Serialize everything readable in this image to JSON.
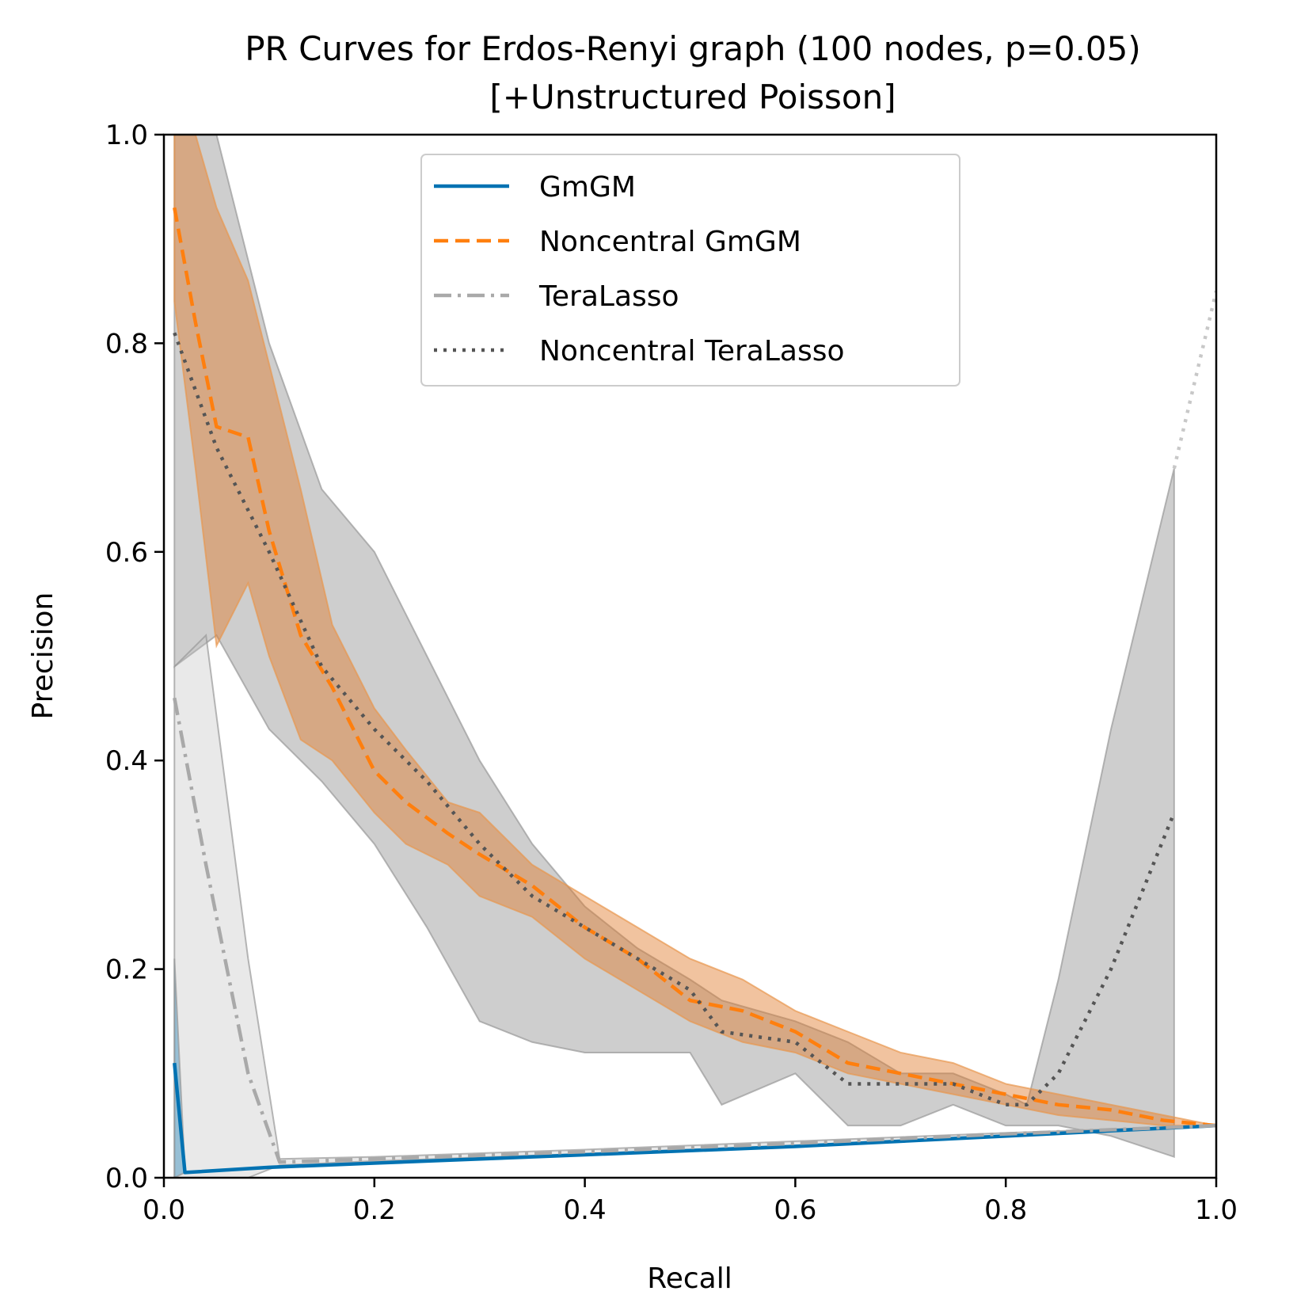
{
  "chart_data": {
    "type": "line",
    "title": "PR Curves for Erdos-Renyi graph (100 nodes, p=0.05)",
    "subtitle": "[+Unstructured Poisson]",
    "xlabel": "Recall",
    "ylabel": "Precision",
    "xlim": [
      0,
      1
    ],
    "ylim": [
      0,
      1
    ],
    "x_ticks": [
      "0.0",
      "0.2",
      "0.4",
      "0.6",
      "0.8",
      "1.0"
    ],
    "y_ticks": [
      "0.0",
      "0.2",
      "0.4",
      "0.6",
      "0.8",
      "1.0"
    ],
    "legend_position": "top-center",
    "series": [
      {
        "name": "GmGM",
        "color": "#0072b2",
        "style": "solid",
        "x": [
          0.01,
          0.02,
          0.1,
          0.2,
          0.4,
          0.6,
          0.8,
          1.0
        ],
        "y": [
          0.11,
          0.005,
          0.01,
          0.014,
          0.022,
          0.03,
          0.04,
          0.05
        ],
        "band_upper": [
          0.21,
          0.005,
          0.01,
          0.014,
          0.022,
          0.03,
          0.04,
          0.05
        ],
        "band_lower": [
          0.0,
          0.005,
          0.01,
          0.014,
          0.022,
          0.03,
          0.04,
          0.05
        ]
      },
      {
        "name": "Noncentral GmGM",
        "color": "#ff7f0e",
        "style": "dashed",
        "x": [
          0.01,
          0.03,
          0.05,
          0.08,
          0.1,
          0.13,
          0.16,
          0.2,
          0.23,
          0.27,
          0.3,
          0.35,
          0.4,
          0.45,
          0.5,
          0.55,
          0.6,
          0.65,
          0.7,
          0.75,
          0.8,
          0.85,
          0.9,
          0.95,
          1.0
        ],
        "y": [
          0.93,
          0.82,
          0.72,
          0.71,
          0.62,
          0.52,
          0.47,
          0.39,
          0.36,
          0.33,
          0.31,
          0.28,
          0.24,
          0.21,
          0.17,
          0.16,
          0.14,
          0.11,
          0.1,
          0.09,
          0.08,
          0.07,
          0.065,
          0.055,
          0.05
        ],
        "band_upper": [
          1.0,
          1.0,
          0.93,
          0.86,
          0.78,
          0.66,
          0.53,
          0.45,
          0.41,
          0.36,
          0.35,
          0.3,
          0.27,
          0.24,
          0.21,
          0.19,
          0.16,
          0.14,
          0.12,
          0.11,
          0.09,
          0.08,
          0.07,
          0.06,
          0.05
        ],
        "band_lower": [
          0.84,
          0.68,
          0.51,
          0.57,
          0.5,
          0.42,
          0.4,
          0.35,
          0.32,
          0.3,
          0.27,
          0.25,
          0.21,
          0.18,
          0.15,
          0.13,
          0.12,
          0.1,
          0.09,
          0.08,
          0.07,
          0.06,
          0.055,
          0.05,
          0.05
        ]
      },
      {
        "name": "TeraLasso",
        "color": "#a9a9a9",
        "style": "dashdot",
        "x": [
          0.01,
          0.04,
          0.08,
          0.11,
          0.2,
          0.4,
          0.6,
          0.8,
          1.0
        ],
        "y": [
          0.46,
          0.3,
          0.1,
          0.015,
          0.018,
          0.025,
          0.033,
          0.042,
          0.05
        ],
        "band_upper": [
          0.49,
          0.52,
          0.21,
          0.018,
          0.02,
          0.027,
          0.035,
          0.043,
          0.05
        ],
        "band_lower": [
          0.0,
          0.0,
          0.0,
          0.012,
          0.016,
          0.023,
          0.031,
          0.041,
          0.05
        ]
      },
      {
        "name": "Noncentral TeraLasso",
        "color": "#555555",
        "style": "dotted",
        "x": [
          0.01,
          0.05,
          0.1,
          0.15,
          0.2,
          0.25,
          0.3,
          0.35,
          0.4,
          0.45,
          0.5,
          0.53,
          0.6,
          0.65,
          0.7,
          0.75,
          0.8,
          0.82,
          0.85,
          0.9,
          0.96
        ],
        "y": [
          0.81,
          0.7,
          0.6,
          0.49,
          0.43,
          0.38,
          0.32,
          0.27,
          0.24,
          0.21,
          0.18,
          0.14,
          0.13,
          0.09,
          0.09,
          0.09,
          0.07,
          0.07,
          0.1,
          0.2,
          0.35
        ],
        "band_upper": [
          1.0,
          1.0,
          0.8,
          0.66,
          0.6,
          0.5,
          0.4,
          0.32,
          0.26,
          0.22,
          0.19,
          0.17,
          0.15,
          0.13,
          0.1,
          0.1,
          0.08,
          0.07,
          0.19,
          0.43,
          0.68
        ],
        "band_lower": [
          0.49,
          0.52,
          0.43,
          0.38,
          0.32,
          0.24,
          0.15,
          0.13,
          0.12,
          0.12,
          0.12,
          0.07,
          0.1,
          0.05,
          0.05,
          0.07,
          0.05,
          0.05,
          0.05,
          0.04,
          0.02
        ],
        "extension_x": [
          0.96,
          1.0
        ],
        "extension_y": [
          0.68,
          0.85
        ]
      }
    ]
  }
}
